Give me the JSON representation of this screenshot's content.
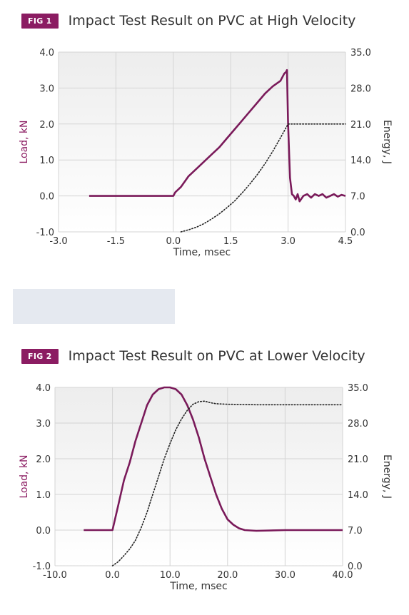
{
  "colors": {
    "accent": "#8b1c62",
    "load_line": "#7a1a5a",
    "energy_line": "#222222",
    "grid": "#d4d4d4",
    "placeholder": "#e5e9f0"
  },
  "figures": [
    {
      "badge": "FIG 1",
      "title": "Impact Test Result on PVC at High Velocity"
    },
    {
      "badge": "FIG 2",
      "title": "Impact Test Result on PVC at Lower Velocity"
    }
  ],
  "chart_data": [
    {
      "type": "line",
      "title": "Impact Test Result on PVC at High Velocity",
      "xlabel": "Time, msec",
      "ylabel": "Load, kN",
      "y2label": "Energy, J",
      "xlim": [
        -3.0,
        4.5
      ],
      "ylim": [
        -1.0,
        4.0
      ],
      "y2lim": [
        0.0,
        35.0
      ],
      "x_ticks": [
        "-3.0",
        "-1.5",
        "0.0",
        "1.5",
        "3.0",
        "4.5"
      ],
      "y_ticks": [
        "-1.0",
        "0.0",
        "1.0",
        "2.0",
        "3.0",
        "4.0"
      ],
      "y2_ticks": [
        "0.0",
        "7.0",
        "14.0",
        "21.0",
        "28.0",
        "35.0"
      ],
      "grid": true,
      "series": [
        {
          "axis": "left",
          "style": "solid",
          "x": [
            -2.2,
            -1.0,
            0.0,
            0.05,
            0.1,
            0.2,
            0.3,
            0.4,
            0.6,
            0.8,
            1.0,
            1.2,
            1.4,
            1.6,
            1.8,
            2.0,
            2.2,
            2.4,
            2.6,
            2.8,
            2.9,
            2.95,
            2.97,
            3.0,
            3.05,
            3.1,
            3.15,
            3.2,
            3.25,
            3.3,
            3.4,
            3.5,
            3.6,
            3.7,
            3.8,
            3.9,
            4.0,
            4.1,
            4.2,
            4.3,
            4.4,
            4.5
          ],
          "y": [
            0.0,
            0.0,
            0.0,
            0.1,
            0.15,
            0.25,
            0.4,
            0.55,
            0.75,
            0.95,
            1.15,
            1.35,
            1.6,
            1.85,
            2.1,
            2.35,
            2.6,
            2.85,
            3.05,
            3.2,
            3.4,
            3.45,
            3.5,
            2.0,
            0.5,
            0.05,
            0.0,
            -0.1,
            0.05,
            -0.15,
            0.0,
            0.05,
            -0.05,
            0.05,
            0.0,
            0.05,
            -0.05,
            0.0,
            0.05,
            -0.02,
            0.03,
            0.0
          ]
        },
        {
          "axis": "right",
          "style": "dotted",
          "x": [
            0.2,
            0.4,
            0.6,
            0.8,
            1.0,
            1.2,
            1.4,
            1.6,
            1.8,
            2.0,
            2.2,
            2.4,
            2.6,
            2.8,
            3.0,
            3.2,
            3.5,
            4.0,
            4.5
          ],
          "y": [
            0.0,
            0.4,
            0.9,
            1.6,
            2.5,
            3.5,
            4.7,
            6.0,
            7.6,
            9.3,
            11.2,
            13.3,
            15.7,
            18.3,
            21.0,
            21.0,
            21.0,
            21.0,
            21.0
          ]
        }
      ]
    },
    {
      "type": "line",
      "title": "Impact Test Result on PVC at Lower Velocity",
      "xlabel": "Time, msec",
      "ylabel": "Load, kN",
      "y2label": "Energy, J",
      "xlim": [
        -10.0,
        40.0
      ],
      "ylim": [
        -1.0,
        4.0
      ],
      "y2lim": [
        0.0,
        35.0
      ],
      "x_ticks": [
        "-10.0",
        "0.0",
        "10.0",
        "20.0",
        "30.0",
        "40.0"
      ],
      "y_ticks": [
        "-1.0",
        "0.0",
        "1.0",
        "2.0",
        "3.0",
        "4.0"
      ],
      "y2_ticks": [
        "0.0",
        "7.0",
        "14.0",
        "21.0",
        "28.0",
        "35.0"
      ],
      "grid": true,
      "series": [
        {
          "axis": "left",
          "style": "solid",
          "x": [
            -5.0,
            -2.0,
            0.0,
            1.0,
            2.0,
            3.0,
            4.0,
            5.0,
            6.0,
            7.0,
            8.0,
            9.0,
            10.0,
            11.0,
            12.0,
            13.0,
            14.0,
            15.0,
            16.0,
            17.0,
            18.0,
            19.0,
            20.0,
            21.0,
            22.0,
            23.0,
            25.0,
            30.0,
            35.0,
            40.0
          ],
          "y": [
            0.0,
            0.0,
            0.0,
            0.7,
            1.4,
            1.9,
            2.5,
            3.0,
            3.5,
            3.8,
            3.95,
            4.0,
            4.0,
            3.95,
            3.8,
            3.5,
            3.1,
            2.6,
            2.0,
            1.5,
            1.0,
            0.6,
            0.3,
            0.15,
            0.05,
            0.0,
            -0.02,
            0.0,
            0.0,
            0.0
          ]
        },
        {
          "axis": "right",
          "style": "dotted",
          "x": [
            0.0,
            1.0,
            2.0,
            3.0,
            4.0,
            5.0,
            6.0,
            7.0,
            8.0,
            9.0,
            10.0,
            11.0,
            12.0,
            13.0,
            14.0,
            15.0,
            16.0,
            17.0,
            18.0,
            20.0,
            25.0,
            30.0,
            35.0,
            40.0
          ],
          "y": [
            0.0,
            0.8,
            2.0,
            3.3,
            5.0,
            7.5,
            10.5,
            14.0,
            17.5,
            21.0,
            24.0,
            26.7,
            28.8,
            30.5,
            31.7,
            32.2,
            32.3,
            32.0,
            31.8,
            31.7,
            31.6,
            31.6,
            31.6,
            31.6
          ]
        }
      ]
    }
  ]
}
